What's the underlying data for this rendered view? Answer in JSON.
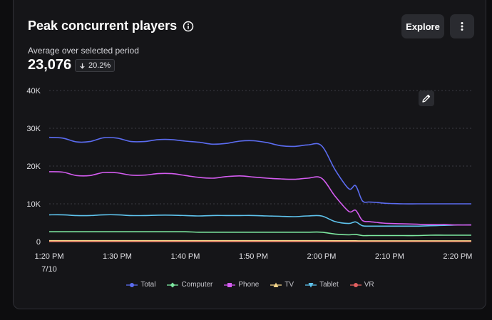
{
  "header": {
    "title": "Peak concurrent players",
    "explore_label": "Explore"
  },
  "summary": {
    "label": "Average over selected period",
    "value": "23,076",
    "delta": "20.2%"
  },
  "legend": [
    {
      "name": "Total",
      "color": "#5b6cf0",
      "marker": "circle"
    },
    {
      "name": "Computer",
      "color": "#7de8a0",
      "marker": "diamond"
    },
    {
      "name": "Phone",
      "color": "#d45cf0",
      "marker": "square"
    },
    {
      "name": "TV",
      "color": "#f6d68a",
      "marker": "triangle-up"
    },
    {
      "name": "Tablet",
      "color": "#5fc4ee",
      "marker": "triangle-down"
    },
    {
      "name": "VR",
      "color": "#e46060",
      "marker": "circle"
    }
  ],
  "chart_data": {
    "type": "line",
    "ylim": [
      0,
      40000
    ],
    "y_ticks": [
      {
        "value": 0,
        "label": "0"
      },
      {
        "value": 10000,
        "label": "10K"
      },
      {
        "value": 20000,
        "label": "20K"
      },
      {
        "value": 30000,
        "label": "30K"
      },
      {
        "value": 40000,
        "label": "40K"
      }
    ],
    "x_range_minutes": [
      0,
      62
    ],
    "x_ticks": [
      {
        "minute": 0,
        "label": "1:20 PM",
        "sublabel": "7/10"
      },
      {
        "minute": 10,
        "label": "1:30 PM"
      },
      {
        "minute": 20,
        "label": "1:40 PM"
      },
      {
        "minute": 30,
        "label": "1:50 PM"
      },
      {
        "minute": 40,
        "label": "2:00 PM"
      },
      {
        "minute": 50,
        "label": "2:10 PM"
      },
      {
        "minute": 60,
        "label": "2:20 PM"
      }
    ],
    "x_minutes": [
      0,
      2,
      4,
      6,
      8,
      10,
      12,
      14,
      16,
      18,
      20,
      22,
      24,
      26,
      28,
      30,
      32,
      34,
      36,
      38,
      40,
      42,
      44,
      45,
      46,
      47,
      48,
      49,
      50,
      52,
      54,
      56,
      58,
      60,
      62
    ],
    "series": [
      {
        "name": "Total",
        "color": "#5b6cf0",
        "values": [
          27600,
          27400,
          26400,
          26500,
          27500,
          27400,
          26500,
          26500,
          27000,
          27000,
          26600,
          26300,
          25800,
          26000,
          26600,
          26700,
          26200,
          25400,
          25200,
          25600,
          25400,
          19000,
          14000,
          14800,
          10800,
          10500,
          10400,
          10200,
          10100,
          10000,
          10000,
          10000,
          10000,
          10000,
          10000
        ]
      },
      {
        "name": "Phone",
        "color": "#d45cf0",
        "values": [
          18500,
          18400,
          17500,
          17500,
          18300,
          18200,
          17600,
          17600,
          18000,
          18000,
          17500,
          17000,
          16800,
          17200,
          17400,
          17100,
          16800,
          16600,
          16500,
          16800,
          16800,
          12000,
          8000,
          8300,
          5600,
          5300,
          5100,
          4900,
          4800,
          4700,
          4600,
          4500,
          4500,
          4400,
          4400
        ]
      },
      {
        "name": "Tablet",
        "color": "#5fc4ee",
        "values": [
          7100,
          7100,
          6900,
          6900,
          7100,
          7100,
          6900,
          6900,
          7000,
          7000,
          6900,
          6800,
          6900,
          6900,
          6900,
          6900,
          6800,
          6700,
          6600,
          6800,
          6800,
          5300,
          4800,
          5200,
          4200,
          4100,
          4100,
          4100,
          4100,
          4100,
          4100,
          4200,
          4300,
          4400,
          4400
        ]
      },
      {
        "name": "Computer",
        "color": "#7de8a0",
        "values": [
          2600,
          2600,
          2600,
          2600,
          2600,
          2600,
          2600,
          2600,
          2600,
          2600,
          2600,
          2500,
          2500,
          2500,
          2500,
          2500,
          2500,
          2500,
          2500,
          2500,
          2500,
          2000,
          1800,
          1900,
          1600,
          1600,
          1600,
          1600,
          1600,
          1600,
          1600,
          1700,
          1700,
          1700,
          1700
        ]
      },
      {
        "name": "TV",
        "color": "#f6d68a",
        "values": [
          250,
          250,
          250,
          250,
          250,
          250,
          250,
          250,
          250,
          250,
          250,
          250,
          250,
          250,
          250,
          250,
          250,
          250,
          250,
          250,
          250,
          230,
          220,
          220,
          200,
          200,
          200,
          200,
          200,
          200,
          200,
          200,
          200,
          200,
          200
        ]
      },
      {
        "name": "VR",
        "color": "#e46060",
        "values": [
          10,
          10,
          10,
          10,
          10,
          10,
          10,
          10,
          10,
          10,
          10,
          10,
          10,
          10,
          10,
          10,
          10,
          10,
          10,
          10,
          10,
          10,
          10,
          10,
          10,
          10,
          10,
          10,
          10,
          10,
          10,
          10,
          10,
          10,
          10
        ]
      }
    ],
    "grid": true,
    "legend_position": "bottom"
  }
}
